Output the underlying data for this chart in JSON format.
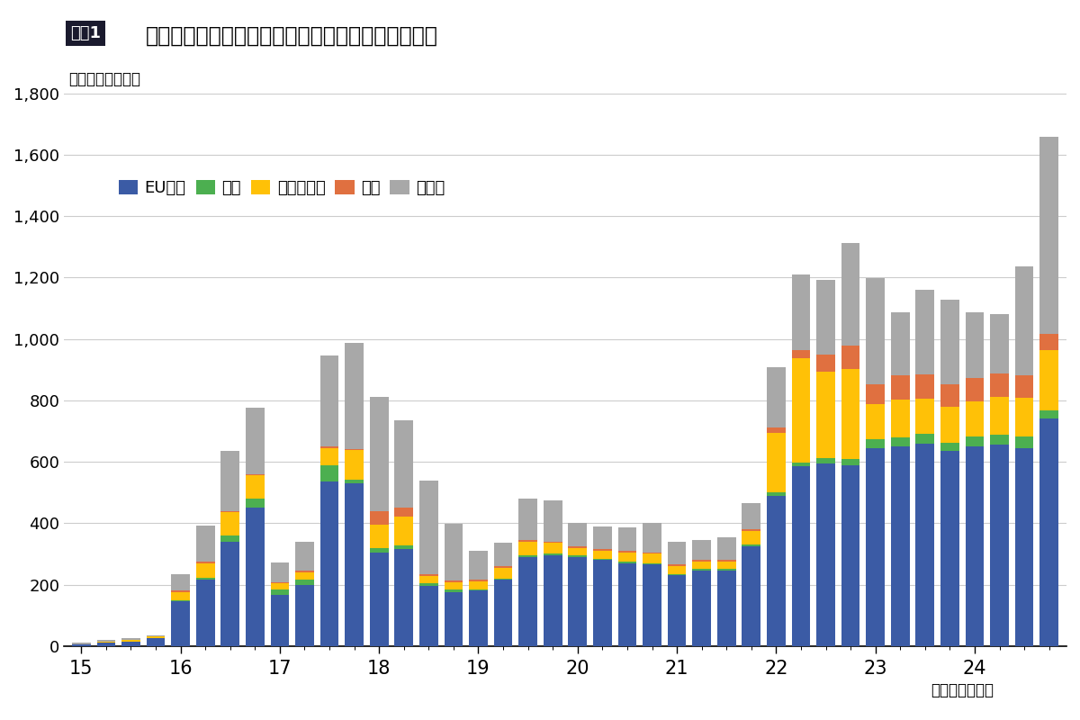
{
  "title_prefix": "図表1",
  "title_main": "スウェーデンのリチウムイオンバッテリー輸出数量",
  "subtitle": "（季調済、トン）",
  "xlabel": "（年、四半期）",
  "ylim": [
    0,
    1800
  ],
  "yticks": [
    0,
    200,
    400,
    600,
    800,
    1000,
    1200,
    1400,
    1600,
    1800
  ],
  "colors": {
    "EU": "#3B5BA5",
    "UK": "#4CAF50",
    "Norway": "#FFC107",
    "USA": "#E07040",
    "Other": "#A8A8A8"
  },
  "legend_labels": [
    "EU域内",
    "英国",
    "ノルウェー",
    "米国",
    "その他"
  ],
  "year_labels": [
    "15",
    "16",
    "17",
    "18",
    "19",
    "20",
    "21",
    "22",
    "23",
    "24"
  ],
  "year_positions": [
    0,
    4,
    8,
    12,
    16,
    20,
    24,
    28,
    32,
    36
  ],
  "EU": [
    5,
    10,
    15,
    25,
    145,
    215,
    340,
    450,
    165,
    200,
    535,
    530,
    305,
    315,
    195,
    175,
    180,
    215,
    290,
    295,
    290,
    280,
    270,
    265,
    230,
    245,
    245,
    325,
    490,
    585,
    595,
    590,
    645,
    650,
    660,
    635,
    650,
    655,
    645,
    740
  ],
  "UK": [
    0,
    0,
    0,
    0,
    5,
    8,
    20,
    30,
    20,
    15,
    55,
    12,
    15,
    12,
    8,
    8,
    5,
    5,
    5,
    5,
    5,
    5,
    5,
    5,
    5,
    5,
    5,
    5,
    10,
    12,
    18,
    18,
    28,
    28,
    32,
    28,
    32,
    32,
    38,
    28
  ],
  "Norway": [
    0,
    5,
    5,
    5,
    25,
    45,
    75,
    75,
    18,
    25,
    55,
    95,
    75,
    95,
    25,
    25,
    25,
    35,
    45,
    35,
    25,
    25,
    30,
    30,
    25,
    25,
    25,
    45,
    195,
    340,
    280,
    295,
    115,
    125,
    115,
    115,
    115,
    125,
    125,
    195
  ],
  "USA": [
    0,
    0,
    0,
    0,
    5,
    8,
    5,
    5,
    5,
    5,
    5,
    5,
    45,
    28,
    5,
    5,
    5,
    5,
    5,
    5,
    5,
    5,
    5,
    5,
    5,
    5,
    5,
    5,
    18,
    28,
    55,
    75,
    65,
    78,
    78,
    75,
    75,
    75,
    75,
    55
  ],
  "Other": [
    5,
    5,
    5,
    5,
    55,
    115,
    195,
    215,
    65,
    95,
    295,
    345,
    370,
    285,
    305,
    185,
    95,
    75,
    135,
    135,
    75,
    75,
    75,
    95,
    75,
    65,
    75,
    85,
    195,
    245,
    245,
    335,
    345,
    205,
    275,
    275,
    215,
    195,
    355,
    640
  ]
}
